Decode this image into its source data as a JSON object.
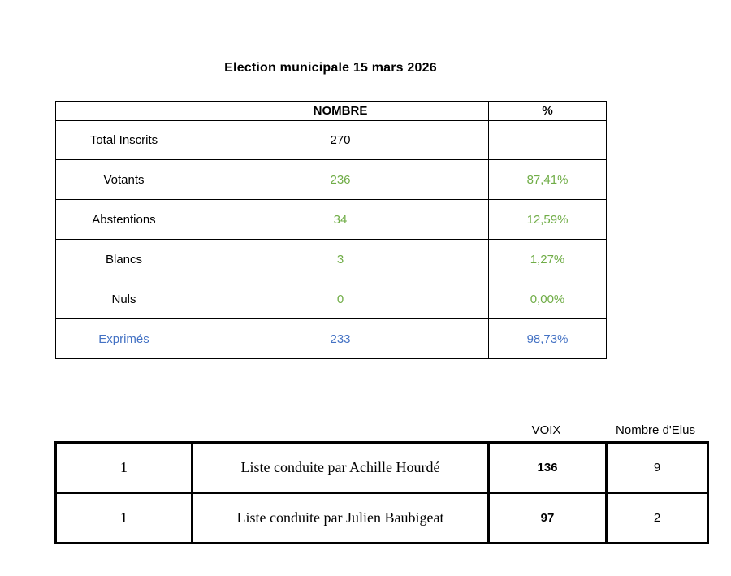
{
  "title": "Election municipale 15 mars 2026",
  "colors": {
    "green": "#70AD47",
    "blue": "#4472C4"
  },
  "results_table": {
    "headers": {
      "label": "",
      "nombre": "NOMBRE",
      "percent": "%"
    },
    "rows": [
      {
        "label": "Total Inscrits",
        "nombre": "270",
        "percent": "",
        "style": "plain"
      },
      {
        "label": "Votants",
        "nombre": "236",
        "percent": "87,41%",
        "style": "green"
      },
      {
        "label": "Abstentions",
        "nombre": "34",
        "percent": "12,59%",
        "style": "green"
      },
      {
        "label": "Blancs",
        "nombre": "3",
        "percent": "1,27%",
        "style": "green"
      },
      {
        "label": "Nuls",
        "nombre": "0",
        "percent": "0,00%",
        "style": "green"
      },
      {
        "label": "Exprimés",
        "nombre": "233",
        "percent": "98,73%",
        "style": "blue"
      }
    ]
  },
  "lists_table": {
    "headers": {
      "voix": "VOIX",
      "elus": "Nombre d'Elus"
    },
    "rows": [
      {
        "rank": "1",
        "name": "Liste conduite par Achille Hourdé",
        "voix": "136",
        "elus": "9"
      },
      {
        "rank": "1",
        "name": "Liste conduite par Julien Baubigeat",
        "voix": "97",
        "elus": "2"
      }
    ]
  }
}
